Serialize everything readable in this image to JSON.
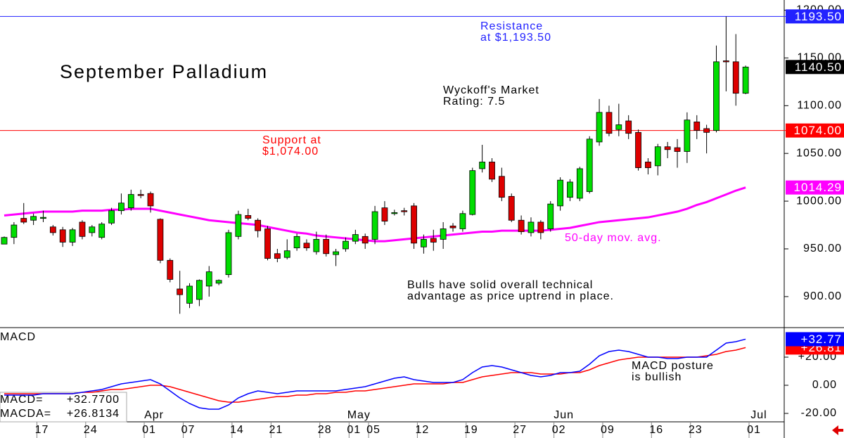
{
  "chart_data": [
    {
      "type": "candlestick",
      "title": "September Palladium",
      "categories": [
        null,
        null,
        null,
        null,
        "17",
        null,
        null,
        null,
        null,
        "24",
        null,
        null,
        null,
        null,
        null,
        "01",
        null,
        null,
        null,
        "07",
        null,
        null,
        null,
        null,
        "14",
        null,
        null,
        null,
        "21",
        null,
        null,
        null,
        null,
        "28",
        null,
        null,
        "01",
        null,
        "05",
        null,
        null,
        null,
        null,
        "12",
        null,
        null,
        null,
        null,
        "19",
        null,
        null,
        null,
        null,
        "27",
        null,
        null,
        null,
        "02",
        null,
        null,
        null,
        null,
        "09",
        null,
        null,
        null,
        null,
        "16",
        null,
        null,
        null,
        "23",
        null,
        null,
        null,
        null,
        null,
        "01"
      ],
      "months": [
        null,
        null,
        null,
        null,
        null,
        null,
        null,
        null,
        null,
        null,
        null,
        null,
        null,
        null,
        null,
        "Apr",
        null,
        null,
        null,
        null,
        null,
        null,
        null,
        null,
        null,
        null,
        null,
        null,
        null,
        null,
        null,
        null,
        null,
        null,
        null,
        null,
        "May",
        null,
        null,
        null,
        null,
        null,
        null,
        null,
        null,
        null,
        null,
        null,
        null,
        null,
        null,
        null,
        null,
        null,
        null,
        null,
        null,
        "Jun",
        null,
        null,
        null,
        null,
        null,
        null,
        null,
        null,
        null,
        null,
        null,
        null,
        null,
        null,
        null,
        null,
        null,
        null,
        null,
        "Jul"
      ],
      "open": [
        955,
        962,
        982,
        980,
        982,
        973,
        970,
        957,
        978,
        967,
        962,
        977,
        990,
        993,
        1007,
        1008,
        981,
        938,
        908,
        893,
        897,
        911,
        914,
        923,
        963,
        985,
        980,
        971,
        945,
        941,
        951,
        956,
        947,
        960,
        944,
        950,
        958,
        963,
        960,
        993,
        987,
        990,
        995,
        952,
        961,
        960,
        974,
        971,
        986,
        1034,
        1041,
        1026,
        1005,
        980,
        967,
        978,
        971,
        995,
        1004,
        1003,
        1010,
        1062,
        1093,
        1075,
        1084,
        1072,
        1041,
        1037,
        1057,
        1056,
        1052,
        1083,
        1076,
        1074,
        1147,
        1146,
        1113,
        null
      ],
      "high": [
        963,
        978,
        998,
        987,
        990,
        975,
        973,
        972,
        980,
        975,
        978,
        993,
        1008,
        1012,
        1012,
        1010,
        982,
        940,
        927,
        914,
        918,
        932,
        918,
        970,
        990,
        992,
        982,
        974,
        950,
        960,
        966,
        960,
        968,
        965,
        950,
        962,
        970,
        966,
        995,
        1000,
        991,
        993,
        998,
        965,
        970,
        978,
        977,
        990,
        1035,
        1059,
        1045,
        1035,
        1008,
        985,
        983,
        980,
        1000,
        1025,
        1023,
        1036,
        1068,
        1107,
        1100,
        1102,
        1090,
        1075,
        1045,
        1060,
        1062,
        1065,
        1093,
        1090,
        1080,
        1163,
        1193.5,
        1175,
        1142,
        null
      ],
      "low": [
        955,
        955,
        976,
        975,
        978,
        964,
        952,
        953,
        960,
        963,
        960,
        975,
        986,
        990,
        1003,
        988,
        935,
        915,
        882,
        888,
        890,
        900,
        912,
        920,
        960,
        980,
        962,
        938,
        936,
        939,
        948,
        948,
        944,
        942,
        932,
        947,
        955,
        950,
        955,
        975,
        985,
        985,
        950,
        945,
        948,
        950,
        968,
        968,
        985,
        1030,
        1020,
        1000,
        978,
        965,
        963,
        960,
        968,
        990,
        1000,
        1000,
        1008,
        1058,
        1068,
        1068,
        1065,
        1032,
        1028,
        1027,
        1045,
        1035,
        1040,
        1065,
        1050,
        1072,
        1115,
        1100,
        1112,
        null
      ],
      "close": [
        962,
        975,
        978,
        984,
        983,
        967,
        957,
        970,
        963,
        973,
        976,
        990,
        998,
        1007,
        1006,
        995,
        938,
        918,
        902,
        911,
        917,
        926,
        917,
        967,
        986,
        982,
        969,
        940,
        940,
        948,
        963,
        951,
        960,
        945,
        947,
        958,
        965,
        956,
        989,
        979,
        988,
        989,
        956,
        960,
        957,
        971,
        972,
        987,
        1032,
        1041,
        1023,
        1004,
        980,
        968,
        978,
        967,
        997,
        1022,
        1020,
        1034,
        1065,
        1093,
        1071,
        1080,
        1071,
        1035,
        1035,
        1057,
        1054,
        1052,
        1085,
        1074,
        1072,
        1146,
        1146,
        1113,
        1140.5,
        null
      ],
      "close_label": "1140.50",
      "up_color": "#00dd00",
      "down_color": "#dd0000",
      "moving_average": {
        "name": "50-day mov. avg.",
        "color": "#ff00ff",
        "last_label": "1014.29",
        "values": [
          985,
          986,
          987,
          988,
          989,
          989,
          989,
          989,
          990,
          990,
          990,
          991,
          991,
          992,
          992,
          992,
          990,
          988,
          986,
          984,
          982,
          980,
          979,
          978,
          977,
          976,
          975,
          973,
          971,
          969,
          967,
          966,
          964,
          963,
          962,
          961,
          960,
          959,
          958,
          958,
          959,
          960,
          961,
          962,
          963,
          964,
          965,
          966,
          967,
          968,
          968,
          969,
          969,
          969,
          969,
          969,
          970,
          971,
          972,
          974,
          976,
          978,
          979,
          980,
          981,
          982,
          983,
          985,
          987,
          989,
          992,
          996,
          999,
          1003,
          1007,
          1011,
          1014.29,
          null
        ]
      },
      "levels": [
        {
          "value": 1193.5,
          "label": "1193.50",
          "color": "#2222ff",
          "note": [
            "Resistance",
            "at $1,193.50"
          ]
        },
        {
          "value": 1074,
          "label": "1074.00",
          "color": "#ff0000",
          "note": [
            "Support at",
            "$1,074.00"
          ]
        }
      ],
      "rating_note": [
        "Wyckoff's Market",
        "Rating: 7.5"
      ],
      "outlook_note": [
        "Bulls have solid overall technical",
        "advantage as price uptrend in place."
      ],
      "ylim": [
        867.5,
        1210.7
      ],
      "yticks": [
        {
          "value": 900,
          "label": "900.00"
        },
        {
          "value": 950,
          "label": "950.00"
        },
        {
          "value": 1000,
          "label": "1000.00"
        },
        {
          "value": 1050,
          "label": "1050.00"
        },
        {
          "value": 1100,
          "label": "1100.00"
        },
        {
          "value": 1150,
          "label": "1150.00"
        },
        {
          "value": 1200,
          "label": "1200.00"
        }
      ]
    },
    {
      "type": "line",
      "title": "MACD",
      "series": [
        {
          "name": "MACD",
          "color": "#0000ff",
          "readout_label": "MACD=",
          "readout": "+32.7700",
          "tag": "+32.77",
          "values": [
            -7,
            -7,
            -7,
            -7,
            -6,
            -6,
            -6,
            -6,
            -5,
            -4,
            -3,
            -1,
            1,
            2,
            3,
            4,
            1,
            -4,
            -9,
            -13,
            -16,
            -17,
            -17,
            -14,
            -9,
            -6,
            -4,
            -5,
            -6,
            -5,
            -4,
            -4,
            -4,
            -4,
            -4,
            -3,
            -2,
            -1,
            1,
            3,
            5,
            6,
            4,
            3,
            2,
            2,
            2,
            4,
            9,
            13,
            14,
            13,
            11,
            9,
            7,
            6,
            7,
            9,
            9,
            10,
            15,
            21,
            24,
            25,
            24,
            22,
            20,
            20,
            19,
            19,
            20,
            20,
            20,
            25,
            30,
            31,
            32.77,
            null
          ]
        },
        {
          "name": "MACDA",
          "color": "#ff0000",
          "readout_label": "MACDA=",
          "readout": "+26.8134",
          "tag": "+26.81",
          "values": [
            -6,
            -6,
            -6,
            -6,
            -6,
            -6,
            -6,
            -6,
            -5,
            -5,
            -4,
            -3,
            -3,
            -2,
            -1,
            0,
            0,
            -1,
            -3,
            -5,
            -7,
            -9,
            -11,
            -12,
            -12,
            -11,
            -10,
            -9,
            -8,
            -8,
            -7,
            -7,
            -6,
            -6,
            -5,
            -5,
            -4,
            -4,
            -3,
            -2,
            -1,
            0,
            1,
            1,
            1,
            1,
            2,
            2,
            4,
            6,
            7,
            8,
            9,
            9,
            9,
            8,
            8,
            8,
            9,
            9,
            11,
            14,
            16,
            18,
            19,
            20,
            20,
            20,
            20,
            20,
            20,
            20,
            21,
            22,
            24,
            25,
            26.8134,
            null
          ]
        }
      ],
      "note": [
        "MACD posture",
        "is bullish"
      ],
      "ylim": [
        -26,
        40.5
      ],
      "yticks": [
        {
          "value": -20,
          "label": "-20.00"
        },
        {
          "value": 0,
          "label": "0.00"
        },
        {
          "value": 20,
          "label": "+20.00"
        }
      ]
    }
  ]
}
